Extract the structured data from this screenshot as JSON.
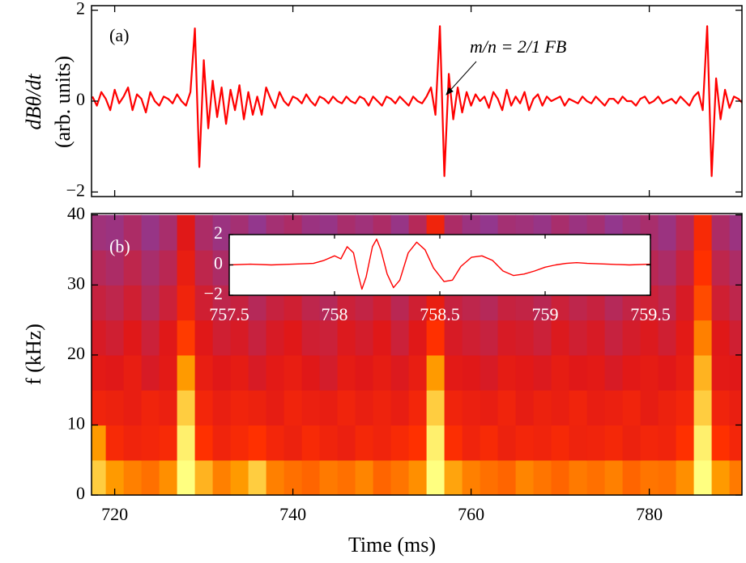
{
  "chart_data": [
    {
      "type": "line",
      "label": "(a)",
      "ylabel": [
        "dBθ/dt",
        "(arb. units)"
      ],
      "color": "#ff0000",
      "annotation": "m/n = 2/1 FB",
      "xlim": [
        717.4,
        790.4
      ],
      "ylim": [
        -2.1,
        2.1
      ],
      "yticks": [
        {
          "value": -2,
          "label": "−2"
        },
        0,
        2
      ],
      "x": [
        717.5,
        718,
        718.5,
        719,
        719.5,
        720,
        720.5,
        721,
        721.5,
        722,
        722.5,
        723,
        723.5,
        724,
        724.5,
        725,
        725.5,
        726,
        726.5,
        727,
        727.5,
        728,
        728.5,
        729,
        729.5,
        730,
        730.5,
        731,
        731.5,
        732,
        732.5,
        733,
        733.5,
        734,
        734.5,
        735,
        735.5,
        736,
        736.5,
        737,
        737.5,
        738,
        738.5,
        739,
        739.5,
        740,
        740.5,
        741,
        741.5,
        742,
        742.5,
        743,
        743.5,
        744,
        744.5,
        745,
        745.5,
        746,
        746.5,
        747,
        747.5,
        748,
        748.5,
        749,
        749.5,
        750,
        750.5,
        751,
        751.5,
        752,
        752.5,
        753,
        753.5,
        754,
        754.5,
        755,
        755.5,
        756,
        756.5,
        757,
        757.5,
        758,
        758.5,
        759,
        759.5,
        760,
        760.5,
        761,
        761.5,
        762,
        762.5,
        763,
        763.5,
        764,
        764.5,
        765,
        765.5,
        766,
        766.5,
        767,
        767.5,
        768,
        768.5,
        769,
        769.5,
        770,
        770.5,
        771,
        771.5,
        772,
        772.5,
        773,
        773.5,
        774,
        774.5,
        775,
        775.5,
        776,
        776.5,
        777,
        777.5,
        778,
        778.5,
        779,
        779.5,
        780,
        780.5,
        781,
        781.5,
        782,
        782.5,
        783,
        783.5,
        784,
        784.5,
        785,
        785.5,
        786,
        786.5,
        787,
        787.5,
        788,
        788.5,
        789,
        789.5,
        790,
        790.5
      ],
      "values": [
        0.1,
        -0.1,
        0.2,
        0.05,
        -0.2,
        0.25,
        -0.05,
        0.1,
        0.3,
        -0.2,
        0.15,
        0.05,
        -0.25,
        0.2,
        0,
        -0.1,
        0.1,
        0.05,
        -0.05,
        0.15,
        0.0,
        -0.1,
        0.2,
        1.6,
        -1.45,
        0.9,
        -0.6,
        0.45,
        -0.35,
        0.3,
        -0.5,
        0.25,
        -0.2,
        0.35,
        -0.4,
        0.2,
        -0.3,
        0.1,
        -0.3,
        0.3,
        0.05,
        -0.15,
        0.2,
        0.0,
        -0.1,
        0.1,
        0.05,
        -0.05,
        0.15,
        0.0,
        -0.1,
        0.1,
        0.05,
        -0.05,
        0.1,
        0.0,
        -0.05,
        0.1,
        0.0,
        -0.05,
        0.1,
        0.05,
        -0.1,
        0.1,
        0.0,
        -0.1,
        0.1,
        0.05,
        -0.05,
        0.1,
        0.0,
        -0.1,
        0.1,
        0.0,
        -0.05,
        0.1,
        0.3,
        -0.3,
        1.65,
        -1.65,
        0.6,
        -0.4,
        0.3,
        -0.25,
        0.2,
        -0.1,
        0.15,
        0.0,
        0.1,
        -0.15,
        0.2,
        0.05,
        -0.2,
        0.25,
        -0.1,
        0.1,
        -0.05,
        0.2,
        -0.2,
        0.05,
        0.15,
        -0.1,
        0.1,
        0.0,
        0.05,
        0.1,
        -0.1,
        0.05,
        0.0,
        -0.05,
        0.1,
        0.0,
        -0.05,
        0.1,
        0.0,
        -0.1,
        0.05,
        0.05,
        -0.05,
        0.1,
        0.0,
        0.0,
        -0.1,
        0.05,
        0.1,
        -0.05,
        0.0,
        0.1,
        -0.05,
        0.0,
        0.05,
        -0.05,
        0.1,
        0.0,
        -0.1,
        0.1,
        0.2,
        -0.2,
        1.65,
        -1.65,
        0.5,
        -0.4,
        0.25,
        -0.15,
        0.1,
        0.05,
        -0.05
      ]
    },
    {
      "type": "heatmap",
      "label": "(b)",
      "ylabel": "f (kHz)",
      "xlabel": "Time (ms)",
      "colormap": [
        "#3a3aa0",
        "#8a3a9a",
        "#e01818",
        "#ff3000",
        "#ff9a00",
        "#ffff80"
      ],
      "xlim": [
        717.4,
        790.4
      ],
      "ylim": [
        0,
        40.2
      ],
      "xticks": [
        720,
        740,
        760,
        780
      ],
      "yticks": [
        0,
        10,
        20,
        30,
        40
      ],
      "x": [
        718,
        720,
        722,
        724,
        726,
        728,
        730,
        732,
        734,
        736,
        738,
        740,
        742,
        744,
        746,
        748,
        750,
        752,
        754,
        756,
        758,
        760,
        762,
        764,
        766,
        768,
        770,
        772,
        774,
        776,
        778,
        780,
        782,
        784,
        786,
        788,
        790
      ],
      "y": [
        2.5,
        7.5,
        12.5,
        17.5,
        22.5,
        27.5,
        32.5,
        37.5
      ],
      "z": [
        [
          0.9,
          0.8,
          0.75,
          0.72,
          0.78,
          1.0,
          0.85,
          0.75,
          0.8,
          0.9,
          0.75,
          0.72,
          0.7,
          0.74,
          0.72,
          0.76,
          0.7,
          0.73,
          0.78,
          1.0,
          0.82,
          0.75,
          0.72,
          0.7,
          0.76,
          0.73,
          0.7,
          0.74,
          0.72,
          0.75,
          0.7,
          0.73,
          0.72,
          0.78,
          1.0,
          0.8,
          0.74
        ],
        [
          0.8,
          0.55,
          0.5,
          0.52,
          0.55,
          0.97,
          0.6,
          0.5,
          0.55,
          0.6,
          0.52,
          0.48,
          0.55,
          0.5,
          0.47,
          0.53,
          0.5,
          0.55,
          0.6,
          0.97,
          0.58,
          0.5,
          0.55,
          0.48,
          0.52,
          0.5,
          0.54,
          0.49,
          0.5,
          0.53,
          0.48,
          0.52,
          0.5,
          0.6,
          0.97,
          0.6,
          0.52
        ],
        [
          0.5,
          0.48,
          0.45,
          0.5,
          0.47,
          0.9,
          0.52,
          0.46,
          0.5,
          0.48,
          0.44,
          0.5,
          0.47,
          0.45,
          0.5,
          0.46,
          0.49,
          0.45,
          0.52,
          0.9,
          0.5,
          0.47,
          0.45,
          0.5,
          0.44,
          0.48,
          0.46,
          0.5,
          0.45,
          0.47,
          0.5,
          0.44,
          0.48,
          0.52,
          0.9,
          0.5,
          0.46
        ],
        [
          0.42,
          0.4,
          0.45,
          0.38,
          0.42,
          0.8,
          0.45,
          0.4,
          0.43,
          0.38,
          0.42,
          0.45,
          0.4,
          0.37,
          0.43,
          0.4,
          0.44,
          0.39,
          0.45,
          0.8,
          0.42,
          0.4,
          0.38,
          0.43,
          0.41,
          0.39,
          0.44,
          0.4,
          0.42,
          0.38,
          0.41,
          0.43,
          0.4,
          0.45,
          0.85,
          0.42,
          0.4
        ],
        [
          0.38,
          0.36,
          0.4,
          0.35,
          0.4,
          0.62,
          0.4,
          0.36,
          0.38,
          0.34,
          0.38,
          0.4,
          0.36,
          0.35,
          0.39,
          0.37,
          0.4,
          0.35,
          0.4,
          0.6,
          0.38,
          0.36,
          0.34,
          0.38,
          0.37,
          0.35,
          0.39,
          0.36,
          0.38,
          0.34,
          0.37,
          0.39,
          0.36,
          0.42,
          0.75,
          0.4,
          0.36
        ],
        [
          0.34,
          0.32,
          0.36,
          0.3,
          0.35,
          0.5,
          0.36,
          0.32,
          0.34,
          0.3,
          0.34,
          0.36,
          0.32,
          0.3,
          0.35,
          0.33,
          0.36,
          0.31,
          0.36,
          0.45,
          0.34,
          0.32,
          0.3,
          0.34,
          0.33,
          0.31,
          0.35,
          0.32,
          0.34,
          0.3,
          0.33,
          0.35,
          0.32,
          0.38,
          0.65,
          0.36,
          0.32
        ],
        [
          0.3,
          0.28,
          0.32,
          0.27,
          0.31,
          0.45,
          0.32,
          0.28,
          0.3,
          0.26,
          0.3,
          0.32,
          0.28,
          0.27,
          0.31,
          0.29,
          0.32,
          0.27,
          0.32,
          0.42,
          0.3,
          0.28,
          0.26,
          0.3,
          0.29,
          0.27,
          0.31,
          0.28,
          0.3,
          0.26,
          0.29,
          0.31,
          0.28,
          0.34,
          0.6,
          0.32,
          0.28
        ],
        [
          0.25,
          0.24,
          0.28,
          0.23,
          0.27,
          0.4,
          0.28,
          0.24,
          0.26,
          0.22,
          0.26,
          0.28,
          0.24,
          0.23,
          0.27,
          0.25,
          0.28,
          0.23,
          0.3,
          0.5,
          0.28,
          0.24,
          0.22,
          0.26,
          0.25,
          0.23,
          0.27,
          0.24,
          0.26,
          0.22,
          0.25,
          0.27,
          0.24,
          0.3,
          0.55,
          0.28,
          0.24
        ]
      ]
    },
    {
      "type": "line",
      "color": "#ff0000",
      "xlim": [
        757.5,
        759.5
      ],
      "ylim": [
        -2,
        2
      ],
      "xticks": [
        757.5,
        758,
        758.5,
        759,
        759.5
      ],
      "yticks": [
        {
          "value": -2,
          "label": "−2"
        },
        0,
        2
      ],
      "x": [
        757.5,
        757.6,
        757.7,
        757.8,
        757.9,
        757.95,
        758.0,
        758.03,
        758.06,
        758.09,
        758.11,
        758.13,
        758.15,
        758.18,
        758.2,
        758.22,
        758.25,
        758.28,
        758.31,
        758.35,
        758.39,
        758.43,
        758.47,
        758.52,
        758.56,
        758.6,
        758.65,
        758.7,
        758.75,
        758.8,
        758.85,
        758.9,
        758.95,
        759.0,
        759.05,
        759.1,
        759.15,
        759.2,
        759.3,
        759.4,
        759.5
      ],
      "values": [
        0,
        0.05,
        0,
        0.05,
        0.1,
        0.3,
        0.6,
        0.4,
        1.2,
        0.8,
        -0.5,
        -1.6,
        -0.8,
        1.2,
        1.7,
        1.0,
        -0.6,
        -1.5,
        -1.0,
        0.8,
        1.5,
        1.0,
        -0.2,
        -1.1,
        -1.0,
        -0.1,
        0.5,
        0.6,
        0.3,
        -0.4,
        -0.7,
        -0.6,
        -0.4,
        -0.15,
        0,
        0.1,
        0.15,
        0.1,
        0.05,
        0,
        0.05
      ]
    }
  ]
}
